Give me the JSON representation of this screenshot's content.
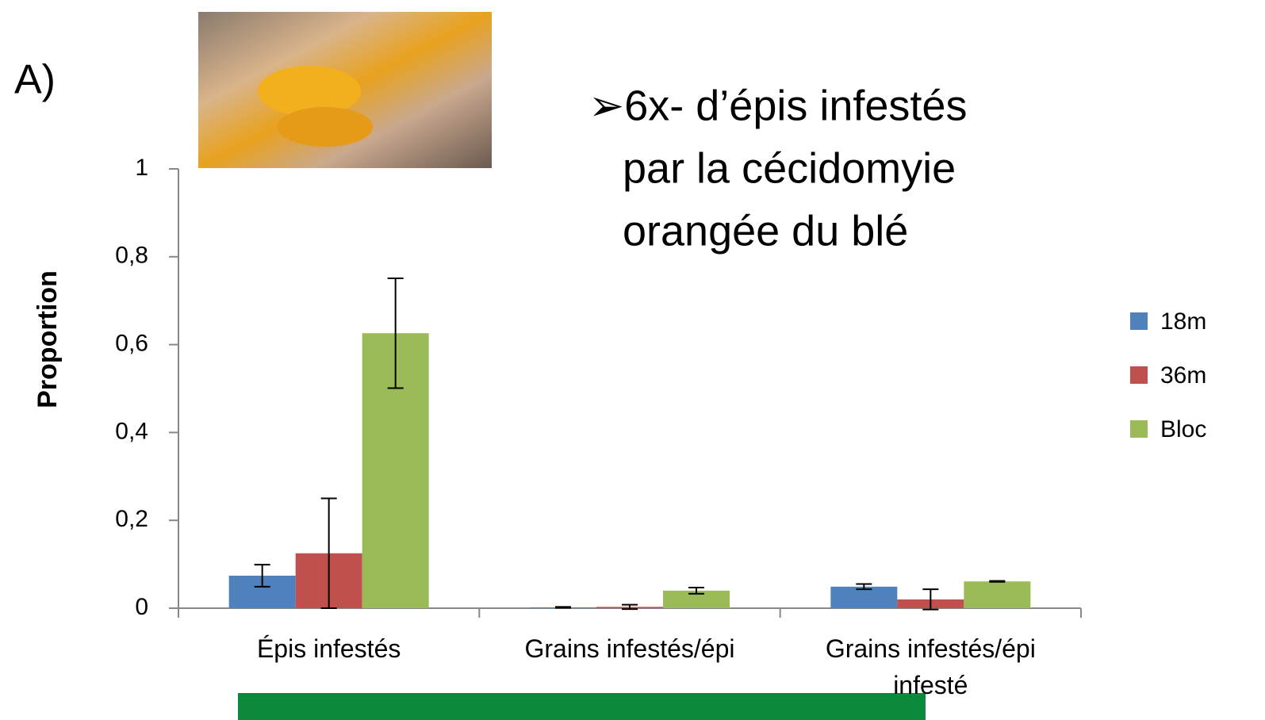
{
  "panel_label": "A)",
  "headline": [
    "➢6x- d’épis infestés",
    "par la cécidomyie",
    "orangée du blé"
  ],
  "chart_data": {
    "type": "bar",
    "y_label": "Proportion",
    "categories": [
      "Épis infestés",
      "Grains infestés/épi",
      "Grains infestés/épi infesté"
    ],
    "series": [
      {
        "name": "18m",
        "color": "#4f81bd",
        "values": [
          0.074,
          0.002,
          0.049
        ],
        "errors": [
          0.025,
          0.001,
          0.006
        ]
      },
      {
        "name": "36m",
        "color": "#c0504d",
        "values": [
          0.125,
          0.003,
          0.02
        ],
        "errors": [
          0.125,
          0.005,
          0.023
        ]
      },
      {
        "name": "Bloc",
        "color": "#9bbb59",
        "values": [
          0.626,
          0.04,
          0.061
        ],
        "errors": [
          0.125,
          0.007,
          0.001
        ]
      }
    ],
    "ylim": [
      0,
      1
    ],
    "yticks": [
      0,
      {
        "value": 0.2,
        "label": "0,2"
      },
      {
        "value": 0.4,
        "label": "0,4"
      },
      {
        "value": 0.6,
        "label": "0,6"
      },
      {
        "value": 0.8,
        "label": "0,8"
      },
      1
    ],
    "grid": false,
    "legend": "right"
  }
}
